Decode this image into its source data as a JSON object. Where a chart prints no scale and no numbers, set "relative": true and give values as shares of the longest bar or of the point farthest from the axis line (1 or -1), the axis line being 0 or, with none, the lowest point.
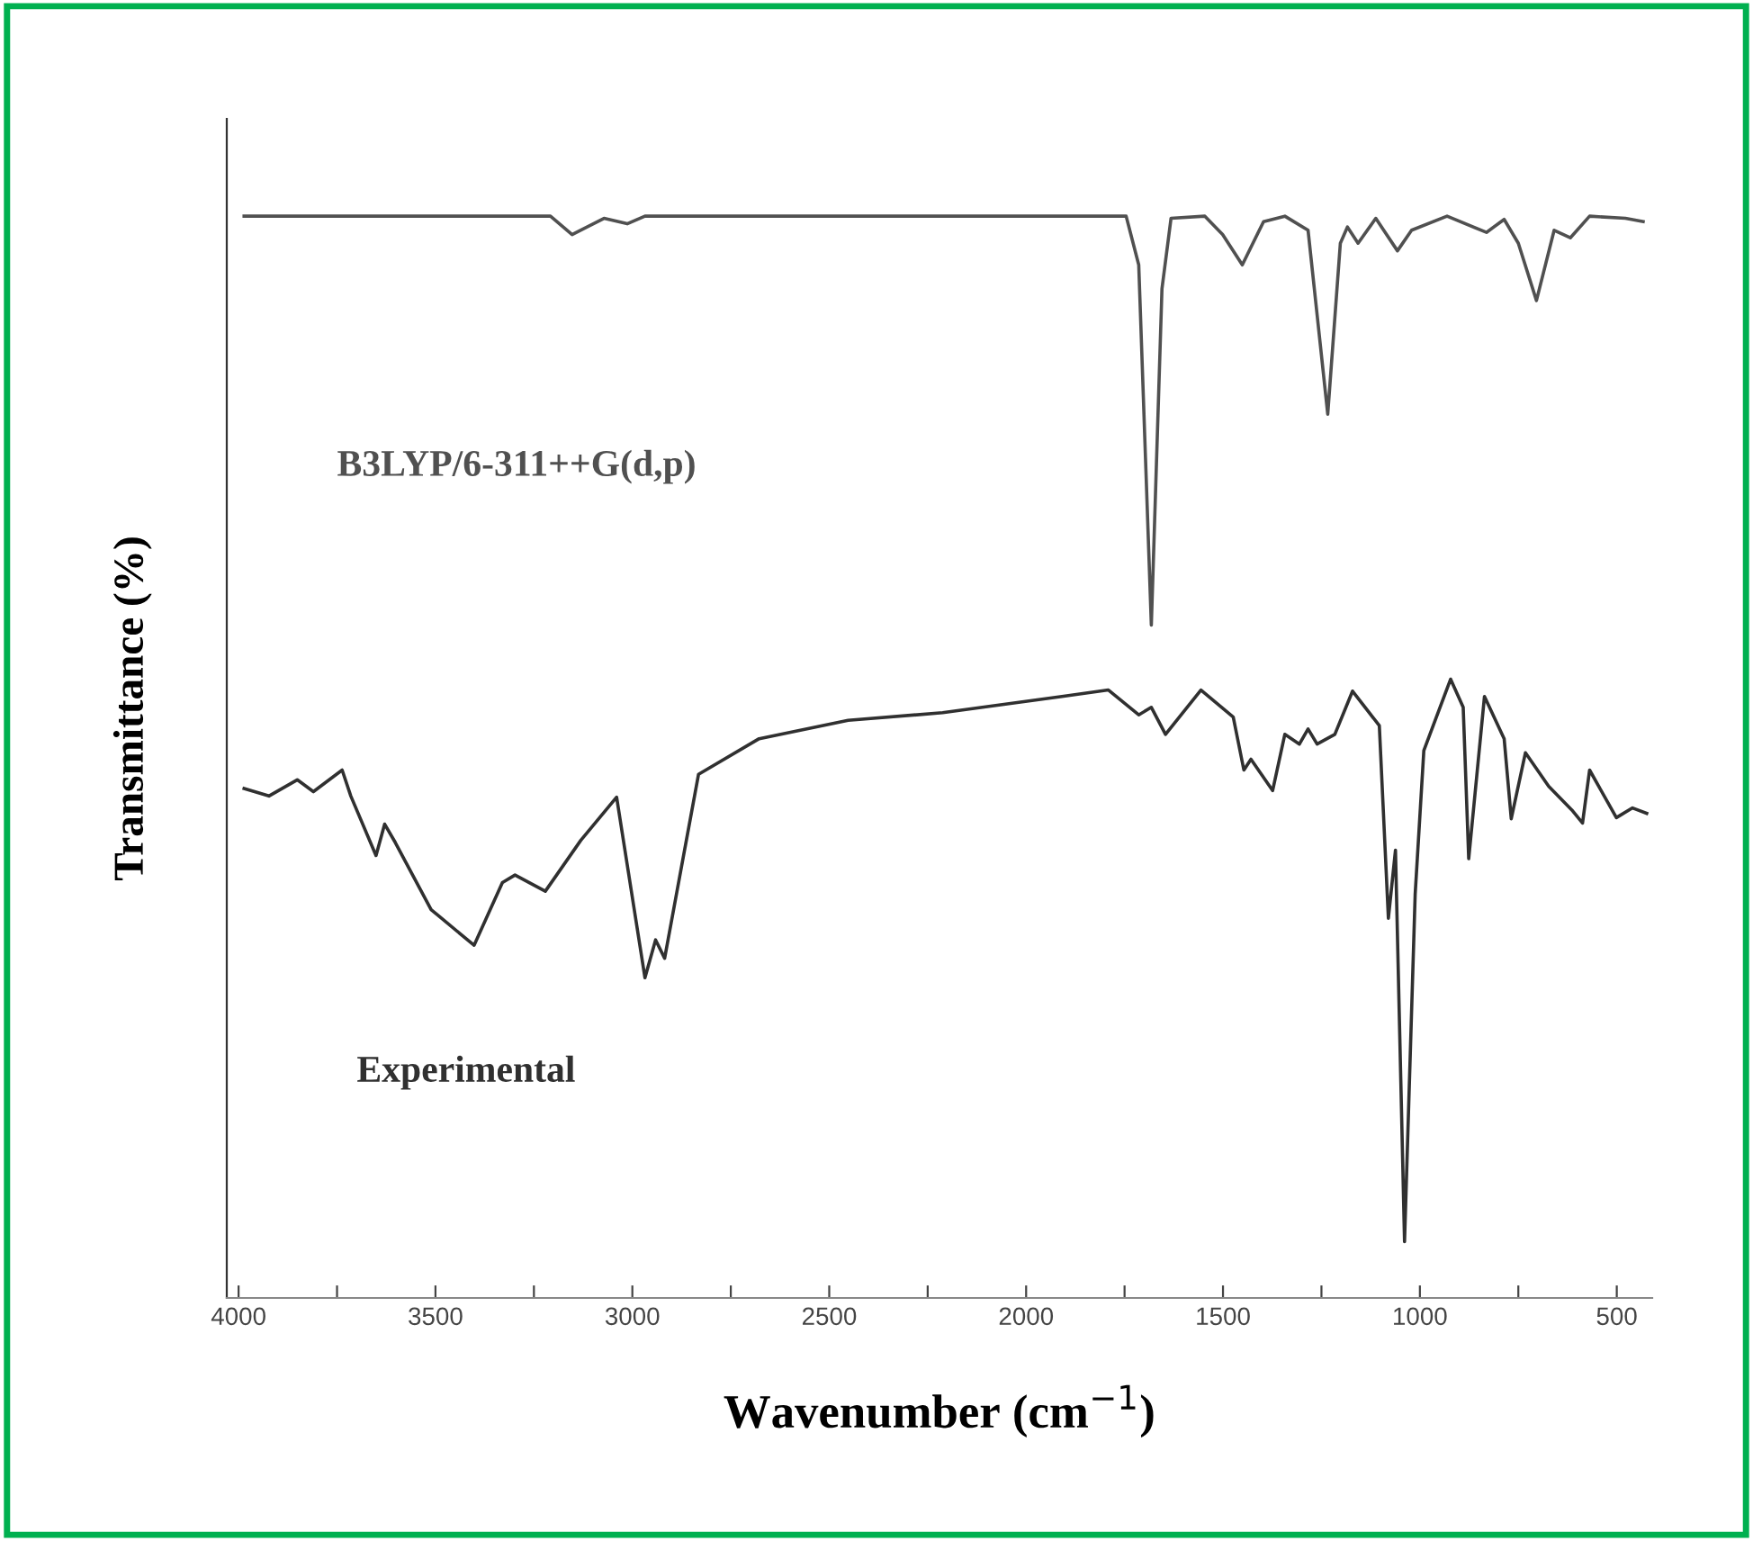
{
  "chart_data": {
    "type": "line",
    "relative": true,
    "xlabel": "Wavenumber (cm$^{−1}$)",
    "ylabel": "Transmittance (%)",
    "xlim": [
      4030,
      410
    ],
    "xticks": [
      4000,
      {
        "value": 3750,
        "label": null
      },
      3500,
      {
        "value": 3250,
        "label": null
      },
      3000,
      {
        "value": 2750,
        "label": null
      },
      2500,
      {
        "value": 2250,
        "label": null
      },
      2000,
      {
        "value": 1750,
        "label": null
      },
      1500,
      {
        "value": 1250,
        "label": null
      },
      1000,
      {
        "value": 750,
        "label": null
      },
      500
    ],
    "grid": false,
    "legend": false,
    "marker": "none",
    "line_style": "solid",
    "series": [
      {
        "name": "B3LYP/6-311++G(d,p)",
        "color": "#505050",
        "x": [
          3986,
          3208,
          3153,
          3072,
          3013,
          2968,
          1746,
          1714,
          1682,
          1655,
          1632,
          1546,
          1501,
          1451,
          1397,
          1343,
          1284,
          1234,
          1202,
          1184,
          1157,
          1112,
          1057,
          1021,
          931,
          831,
          786,
          750,
          704,
          659,
          618,
          569,
          478,
          433
        ],
        "values": [
          1.0,
          1.0,
          0.983,
          0.998,
          0.993,
          1.0,
          1.0,
          0.955,
          0.622,
          0.933,
          0.998,
          1.0,
          0.983,
          0.955,
          0.995,
          1.0,
          0.987,
          0.817,
          0.975,
          0.99,
          0.975,
          0.998,
          0.968,
          0.987,
          1.0,
          0.985,
          0.997,
          0.975,
          0.922,
          0.987,
          0.98,
          1.0,
          0.998,
          0.995
        ]
      },
      {
        "name": "Experimental",
        "color": "#303030",
        "x": [
          3986,
          3923,
          3851,
          3810,
          3737,
          3715,
          3651,
          3629,
          3602,
          3511,
          3402,
          3330,
          3298,
          3221,
          3131,
          3040,
          2968,
          2941,
          2918,
          2832,
          2678,
          2452,
          2212,
          1909,
          1791,
          1714,
          1682,
          1646,
          1556,
          1474,
          1447,
          1429,
          1374,
          1343,
          1306,
          1284,
          1261,
          1216,
          1171,
          1103,
          1080,
          1062,
          1039,
          1012,
          990,
          922,
          890,
          876,
          836,
          786,
          768,
          732,
          673,
          614,
          587,
          569,
          501,
          460,
          424
        ],
        "values": [
          0.471,
          0.464,
          0.479,
          0.468,
          0.488,
          0.464,
          0.409,
          0.438,
          0.421,
          0.359,
          0.326,
          0.384,
          0.391,
          0.376,
          0.423,
          0.463,
          0.296,
          0.331,
          0.314,
          0.484,
          0.517,
          0.534,
          0.541,
          0.556,
          0.562,
          0.539,
          0.546,
          0.521,
          0.562,
          0.537,
          0.488,
          0.498,
          0.469,
          0.521,
          0.512,
          0.526,
          0.512,
          0.521,
          0.561,
          0.529,
          0.351,
          0.414,
          0.052,
          0.373,
          0.506,
          0.572,
          0.546,
          0.406,
          0.556,
          0.517,
          0.443,
          0.504,
          0.473,
          0.451,
          0.439,
          0.488,
          0.444,
          0.453,
          0.448
        ]
      }
    ]
  }
}
